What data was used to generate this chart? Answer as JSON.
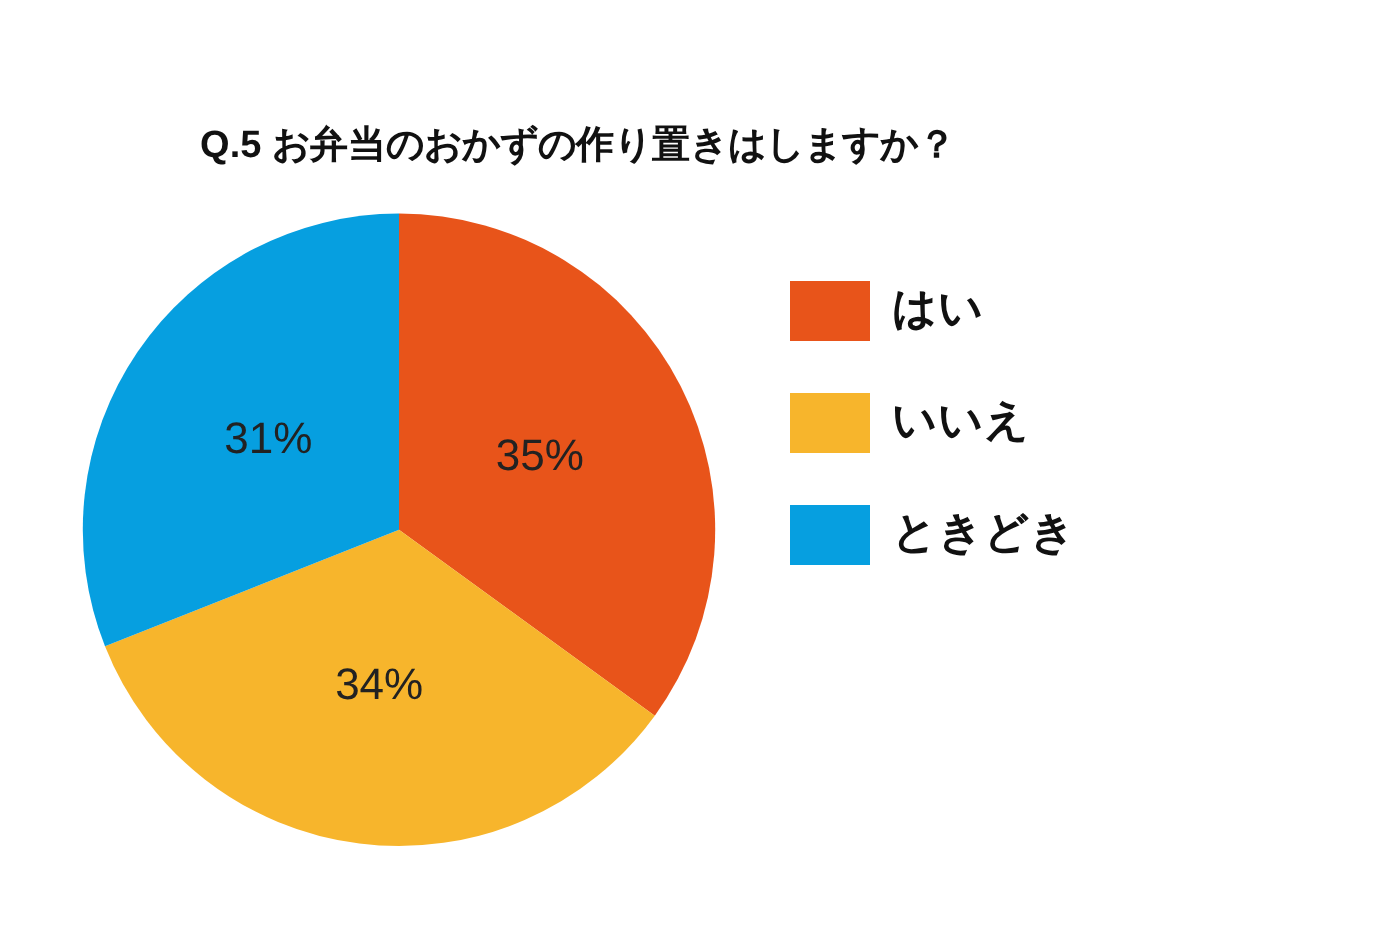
{
  "chart_data": {
    "type": "pie",
    "title": "Q.5 お弁当のおかずの作り置きはしますか？",
    "categories": [
      "はい",
      "いいえ",
      "ときどき"
    ],
    "values": [
      35,
      34,
      31
    ],
    "colors": [
      "#e8541a",
      "#f7b52c",
      "#069fe0"
    ],
    "value_labels": [
      "35%",
      "34%",
      "31%"
    ],
    "legend": "right"
  }
}
